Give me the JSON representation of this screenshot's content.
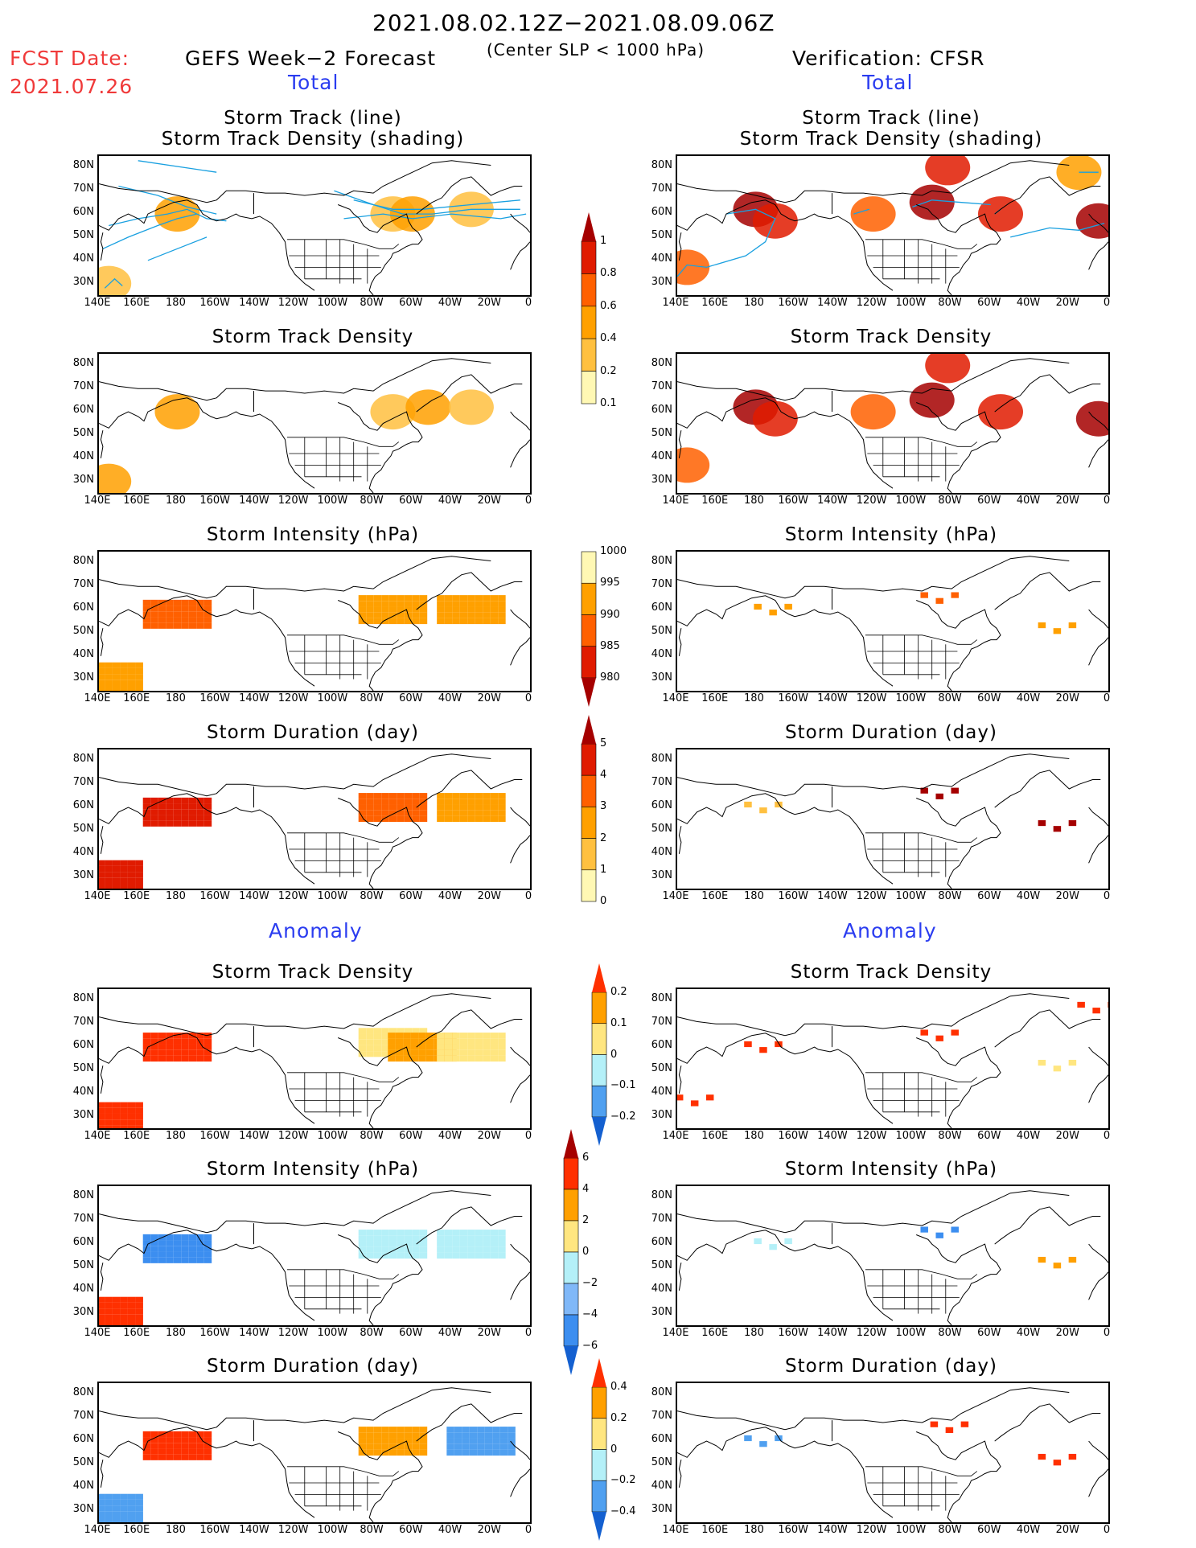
{
  "header": {
    "date_range": "2021.08.02.12Z−2021.08.09.06Z",
    "condition": "(Center SLP < 1000 hPa)",
    "fcst_date_label": "FCST Date:",
    "fcst_date_value": "2021.07.26",
    "left_title": "GEFS Week−2 Forecast",
    "right_title": "Verification: CFSR",
    "total_label": "Total",
    "anomaly_label": "Anomaly"
  },
  "axes": {
    "lat_ticks": [
      "80N",
      "70N",
      "60N",
      "50N",
      "40N",
      "30N"
    ],
    "lon_ticks": [
      "140E",
      "160E",
      "180",
      "160W",
      "140W",
      "120W",
      "100W",
      "80W",
      "60W",
      "40W",
      "20W",
      "0"
    ],
    "lat_range": [
      25,
      85
    ],
    "lon_range_deg_east": [
      140,
      360
    ]
  },
  "colorbars": [
    {
      "name": "storm-track-density",
      "labels": [
        "1",
        "0.8",
        "0.6",
        "0.4",
        "0.2",
        "0.1"
      ],
      "colors": [
        "#a50000",
        "#e01b00",
        "#ff6000",
        "#ffa000",
        "#ffc040",
        "#fff8b4"
      ]
    },
    {
      "name": "storm-intensity",
      "labels": [
        "1000",
        "995",
        "990",
        "985",
        "980"
      ],
      "colors": [
        "#fff8b4",
        "#ffa000",
        "#ff6000",
        "#e01b00",
        "#a50000"
      ]
    },
    {
      "name": "storm-duration",
      "labels": [
        "5",
        "4",
        "3",
        "2",
        "1",
        "0"
      ],
      "colors": [
        "#a50000",
        "#e01b00",
        "#ff6000",
        "#ffa000",
        "#ffc040",
        "#fff8b4"
      ]
    },
    {
      "name": "anom-density",
      "labels": [
        "0.2",
        "0.1",
        "0",
        "−0.1",
        "−0.2"
      ],
      "colors": [
        "#ff3000",
        "#ffa000",
        "#ffe680",
        "#b4f0f8",
        "#50a0f0",
        "#1460d0"
      ]
    },
    {
      "name": "anom-intensity",
      "labels": [
        "6",
        "4",
        "2",
        "0",
        "−2",
        "−4",
        "−6"
      ],
      "colors": [
        "#a50000",
        "#ff3000",
        "#ffa000",
        "#ffe680",
        "#b4f0f8",
        "#80b8f8",
        "#3c8ef0",
        "#1460d0"
      ]
    },
    {
      "name": "anom-duration",
      "labels": [
        "0.4",
        "0.2",
        "0",
        "−0.2",
        "−0.4"
      ],
      "colors": [
        "#ff3000",
        "#ffa000",
        "#ffe680",
        "#b4f0f8",
        "#50a0f0",
        "#1460d0"
      ]
    }
  ],
  "chart_data": [
    {
      "type": "heatmap",
      "panel": "forecast-total-track",
      "title": "Storm Track (line)",
      "subtitle": "Storm Track Density (shading)",
      "has_track_lines": true,
      "regions": [
        {
          "lon": 180,
          "lat": 60,
          "value": 0.4
        },
        {
          "lon": 290,
          "lat": 60,
          "value": 0.3
        },
        {
          "lon": 300,
          "lat": 60,
          "value": 0.4
        },
        {
          "lon": 330,
          "lat": 62,
          "value": 0.3
        },
        {
          "lon": 145,
          "lat": 30,
          "value": 0.3
        }
      ]
    },
    {
      "type": "heatmap",
      "panel": "verif-total-track",
      "title": "Storm Track (line)",
      "subtitle": "Storm Track Density (shading)",
      "has_track_lines": true,
      "regions": [
        {
          "lon": 180,
          "lat": 62,
          "value": 1.0
        },
        {
          "lon": 190,
          "lat": 57,
          "value": 0.8
        },
        {
          "lon": 240,
          "lat": 60,
          "value": 0.6
        },
        {
          "lon": 270,
          "lat": 65,
          "value": 1.0
        },
        {
          "lon": 278,
          "lat": 80,
          "value": 0.8
        },
        {
          "lon": 305,
          "lat": 60,
          "value": 0.8
        },
        {
          "lon": 355,
          "lat": 57,
          "value": 1.0
        },
        {
          "lon": 145,
          "lat": 37,
          "value": 0.6
        },
        {
          "lon": 345,
          "lat": 78,
          "value": 0.4
        }
      ]
    },
    {
      "type": "heatmap",
      "panel": "forecast-total-density",
      "title": "Storm Track Density",
      "regions": [
        {
          "lon": 180,
          "lat": 60,
          "value": 0.4
        },
        {
          "lon": 290,
          "lat": 60,
          "value": 0.3
        },
        {
          "lon": 308,
          "lat": 62,
          "value": 0.4
        },
        {
          "lon": 330,
          "lat": 62,
          "value": 0.3
        },
        {
          "lon": 145,
          "lat": 30,
          "value": 0.4
        }
      ]
    },
    {
      "type": "heatmap",
      "panel": "verif-total-density",
      "title": "Storm Track Density",
      "regions": [
        {
          "lon": 180,
          "lat": 62,
          "value": 1.0
        },
        {
          "lon": 190,
          "lat": 57,
          "value": 0.8
        },
        {
          "lon": 240,
          "lat": 60,
          "value": 0.6
        },
        {
          "lon": 270,
          "lat": 65,
          "value": 1.0
        },
        {
          "lon": 278,
          "lat": 80,
          "value": 0.8
        },
        {
          "lon": 305,
          "lat": 60,
          "value": 0.8
        },
        {
          "lon": 355,
          "lat": 57,
          "value": 1.0
        },
        {
          "lon": 145,
          "lat": 37,
          "value": 0.6
        }
      ]
    },
    {
      "type": "heatmap",
      "panel": "forecast-total-intensity",
      "title": "Storm Intensity (hPa)",
      "regions": [
        {
          "lon": 180,
          "lat": 58,
          "value": 990
        },
        {
          "lon": 290,
          "lat": 60,
          "value": 995
        },
        {
          "lon": 330,
          "lat": 60,
          "value": 995
        },
        {
          "lon": 145,
          "lat": 31,
          "value": 995
        }
      ]
    },
    {
      "type": "heatmap",
      "panel": "verif-total-intensity",
      "title": "Storm Intensity (hPa)",
      "regions": [
        {
          "lon": 185,
          "lat": 60,
          "value": 995
        },
        {
          "lon": 270,
          "lat": 65,
          "value": 990
        },
        {
          "lon": 330,
          "lat": 52,
          "value": 997
        }
      ]
    },
    {
      "type": "heatmap",
      "panel": "forecast-total-duration",
      "title": "Storm Duration (day)",
      "regions": [
        {
          "lon": 180,
          "lat": 58,
          "value": 4
        },
        {
          "lon": 290,
          "lat": 60,
          "value": 3
        },
        {
          "lon": 330,
          "lat": 60,
          "value": 2.5
        },
        {
          "lon": 145,
          "lat": 31,
          "value": 4
        }
      ]
    },
    {
      "type": "heatmap",
      "panel": "verif-total-duration",
      "title": "Storm Duration (day)",
      "regions": [
        {
          "lon": 270,
          "lat": 66,
          "value": 5
        },
        {
          "lon": 330,
          "lat": 52,
          "value": 5
        },
        {
          "lon": 180,
          "lat": 60,
          "value": 1.5
        }
      ]
    },
    {
      "type": "heatmap",
      "panel": "forecast-anom-density",
      "title": "Storm Track Density",
      "regions": [
        {
          "lon": 180,
          "lat": 60,
          "value": 0.2
        },
        {
          "lon": 290,
          "lat": 62,
          "value": 0.05
        },
        {
          "lon": 305,
          "lat": 60,
          "value": 0.15
        },
        {
          "lon": 330,
          "lat": 60,
          "value": 0.05
        },
        {
          "lon": 145,
          "lat": 30,
          "value": 0.2
        }
      ]
    },
    {
      "type": "heatmap",
      "panel": "verif-anom-density",
      "title": "Storm Track Density",
      "regions": [
        {
          "lon": 180,
          "lat": 60,
          "value": 0.2
        },
        {
          "lon": 270,
          "lat": 65,
          "value": 0.2
        },
        {
          "lon": 350,
          "lat": 77,
          "value": 0.2
        },
        {
          "lon": 330,
          "lat": 52,
          "value": 0.05
        },
        {
          "lon": 145,
          "lat": 37,
          "value": 0.2
        }
      ]
    },
    {
      "type": "heatmap",
      "panel": "forecast-anom-intensity",
      "title": "Storm Intensity (hPa)",
      "regions": [
        {
          "lon": 180,
          "lat": 58,
          "value": -5
        },
        {
          "lon": 290,
          "lat": 60,
          "value": -2
        },
        {
          "lon": 330,
          "lat": 60,
          "value": -2
        },
        {
          "lon": 145,
          "lat": 31,
          "value": 4
        }
      ]
    },
    {
      "type": "heatmap",
      "panel": "verif-anom-intensity",
      "title": "Storm Intensity (hPa)",
      "regions": [
        {
          "lon": 270,
          "lat": 65,
          "value": -5
        },
        {
          "lon": 185,
          "lat": 60,
          "value": -1
        },
        {
          "lon": 330,
          "lat": 52,
          "value": 3
        }
      ]
    },
    {
      "type": "heatmap",
      "panel": "forecast-anom-duration",
      "title": "Storm Duration (day)",
      "regions": [
        {
          "lon": 180,
          "lat": 58,
          "value": 0.4
        },
        {
          "lon": 290,
          "lat": 60,
          "value": 0.3
        },
        {
          "lon": 335,
          "lat": 60,
          "value": -0.4
        },
        {
          "lon": 145,
          "lat": 31,
          "value": -0.3
        }
      ]
    },
    {
      "type": "heatmap",
      "panel": "verif-anom-duration",
      "title": "Storm Duration (day)",
      "regions": [
        {
          "lon": 180,
          "lat": 60,
          "value": -0.4
        },
        {
          "lon": 275,
          "lat": 66,
          "value": 0.4
        },
        {
          "lon": 330,
          "lat": 52,
          "value": 0.4
        }
      ]
    }
  ]
}
